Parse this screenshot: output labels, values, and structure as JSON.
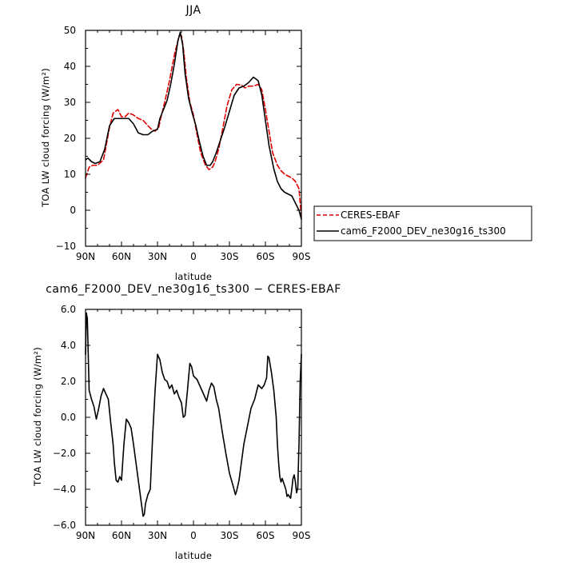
{
  "chart_data": [
    {
      "type": "line",
      "title": "JJA",
      "xlabel": "latitude",
      "ylabel": "TOA LW cloud forcing (W/m²)",
      "xlim": [
        90,
        -90
      ],
      "ylim": [
        -10,
        50
      ],
      "x_ticks": [
        90,
        60,
        30,
        0,
        -30,
        -60,
        -90
      ],
      "x_tick_labels": [
        "90N",
        "60N",
        "30N",
        "0",
        "30S",
        "60S",
        "90S"
      ],
      "y_ticks": [
        -10,
        0,
        10,
        20,
        30,
        40,
        50
      ],
      "y_tick_labels": [
        "−10",
        "0",
        "10",
        "20",
        "30",
        "40",
        "50"
      ],
      "legend": {
        "position": "right",
        "entries": [
          "CERES-EBAF",
          "cam6_F2000_DEV_ne30g16_ts300"
        ]
      },
      "series": [
        {
          "name": "CERES-EBAF",
          "color": "#e00000",
          "dash": true,
          "x": [
            90,
            87,
            84,
            80,
            75,
            70,
            67,
            63,
            60,
            57,
            54,
            50,
            46,
            42,
            38,
            35,
            32,
            29,
            27,
            24,
            20,
            16,
            12,
            10,
            8,
            6,
            3,
            0,
            -3,
            -6,
            -10,
            -13,
            -16,
            -18,
            -21,
            -24,
            -28,
            -32,
            -36,
            -40,
            -43,
            -46,
            -50,
            -54,
            -57,
            -60,
            -63,
            -66,
            -70,
            -73,
            -76,
            -79,
            -82,
            -85,
            -88,
            -90
          ],
          "y": [
            9,
            12,
            12.5,
            12.5,
            14,
            23,
            27,
            28,
            26,
            26,
            27,
            26.5,
            25.5,
            25,
            23.5,
            22.5,
            22,
            23,
            26,
            30,
            36,
            43,
            48.5,
            48.5,
            44,
            37,
            30,
            26.5,
            21,
            16,
            12.5,
            11.3,
            12,
            13.5,
            17,
            22,
            29,
            33.5,
            35,
            34.8,
            34,
            34.5,
            34.5,
            35,
            33.5,
            28,
            22,
            16,
            12.5,
            11,
            10,
            9.5,
            9,
            8,
            6,
            -2
          ]
        },
        {
          "name": "cam6_F2000_DEV_ne30g16_ts300",
          "color": "#000000",
          "dash": false,
          "x": [
            90,
            88,
            85,
            82,
            78,
            74,
            70,
            66,
            62,
            58,
            54,
            50,
            46,
            42,
            38,
            34,
            30,
            28,
            25,
            22,
            19,
            16,
            13,
            11,
            9,
            7,
            4,
            1,
            -2,
            -5,
            -8,
            -11,
            -14,
            -16,
            -19,
            -22,
            -26,
            -30,
            -34,
            -38,
            -42,
            -46,
            -50,
            -54,
            -57,
            -60,
            -63,
            -67,
            -70,
            -73,
            -76,
            -79,
            -82,
            -85,
            -88,
            -90
          ],
          "y": [
            14,
            14.5,
            13.5,
            13,
            13.5,
            17,
            23.5,
            25.5,
            25.5,
            25.5,
            25.5,
            24,
            21.5,
            21,
            21,
            22,
            22.5,
            25.5,
            28,
            30.5,
            35,
            40.5,
            47,
            49.5,
            46,
            38,
            31,
            27,
            23.5,
            19,
            15,
            12.5,
            12.5,
            13.5,
            16,
            19,
            23,
            27.5,
            32,
            34,
            34.5,
            35.5,
            37,
            36,
            32,
            25,
            18,
            11.5,
            8,
            6,
            5,
            4.5,
            4,
            2,
            0,
            -2.5
          ]
        }
      ]
    },
    {
      "type": "line",
      "title": "cam6_F2000_DEV_ne30g16_ts300 − CERES-EBAF",
      "xlabel": "latitude",
      "ylabel": "TOA LW cloud forcing (W/m²)",
      "xlim": [
        90,
        -90
      ],
      "ylim": [
        -6,
        6
      ],
      "x_ticks": [
        90,
        60,
        30,
        0,
        -30,
        -60,
        -90
      ],
      "x_tick_labels": [
        "90N",
        "60N",
        "30N",
        "0",
        "30S",
        "60S",
        "90S"
      ],
      "y_ticks": [
        -6,
        -4,
        -2,
        0,
        2,
        4,
        6
      ],
      "y_tick_labels": [
        "−6.0",
        "−4.0",
        "−2.0",
        "0.0",
        "2.0",
        "4.0",
        "6.0"
      ],
      "series": [
        {
          "name": "cam6_F2000_DEV_ne30g16_ts300 − CERES-EBAF",
          "color": "#000000",
          "dash": false,
          "x": [
            90,
            89.3,
            88.5,
            87,
            85,
            83,
            81,
            79,
            77,
            75,
            73,
            71,
            69,
            67,
            66,
            64.5,
            63,
            61.5,
            60,
            59,
            58,
            56,
            54,
            52,
            50,
            48,
            46,
            44,
            43,
            42,
            41,
            40,
            38,
            36,
            34,
            32,
            30,
            28,
            26,
            24,
            22,
            20,
            18,
            16,
            14,
            12,
            10,
            8.5,
            7,
            5,
            3,
            1.5,
            0,
            -1.5,
            -3,
            -5,
            -7,
            -9,
            -11,
            -13,
            -15,
            -17,
            -19,
            -21,
            -24,
            -27,
            -30,
            -33,
            -35,
            -36,
            -38,
            -40,
            -42,
            -45,
            -48,
            -51,
            -54,
            -57,
            -59,
            -61,
            -62,
            -63,
            -65,
            -67,
            -69,
            -70,
            -71,
            -72,
            -73,
            -74,
            -75,
            -77,
            -78,
            -79,
            -80,
            -81,
            -82,
            -83,
            -84,
            -85,
            -86,
            -87,
            -88,
            -89,
            -90
          ],
          "y": [
            3.5,
            5.8,
            5.5,
            1.5,
            1,
            0.6,
            -0.1,
            0.5,
            1.2,
            1.6,
            1.3,
            1,
            -0.3,
            -1.5,
            -2.5,
            -3.5,
            -3.6,
            -3.3,
            -3.5,
            -2.5,
            -1.5,
            -0.1,
            -0.3,
            -0.6,
            -1.5,
            -2.5,
            -3.5,
            -4.5,
            -5,
            -5.5,
            -5.4,
            -4.8,
            -4.3,
            -4,
            -1,
            1.5,
            3.5,
            3.2,
            2.5,
            2.1,
            2,
            1.6,
            1.8,
            1.3,
            1.5,
            1.1,
            0.8,
            0,
            0.1,
            1.5,
            3,
            2.8,
            2.3,
            2.2,
            2.1,
            1.8,
            1.5,
            1.2,
            0.9,
            1.5,
            1.9,
            1.7,
            1,
            0.5,
            -0.8,
            -2,
            -3.1,
            -3.8,
            -4.3,
            -4.1,
            -3.5,
            -2.5,
            -1.5,
            -0.5,
            0.5,
            1,
            1.8,
            1.6,
            1.8,
            2.2,
            3.4,
            3.3,
            2.5,
            1.5,
            0,
            -1.5,
            -2.5,
            -3.3,
            -3.6,
            -3.4,
            -3.6,
            -4,
            -4.4,
            -4.3,
            -4.4,
            -4.5,
            -4,
            -3.4,
            -3.2,
            -3.6,
            -4.2,
            -3.9,
            -1.5,
            2,
            3.5
          ]
        }
      ]
    }
  ]
}
